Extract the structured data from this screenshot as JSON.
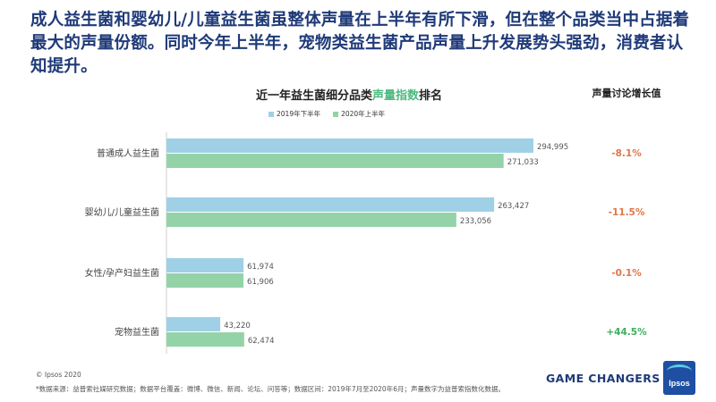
{
  "headline": "成人益生菌和婴幼儿/儿童益生菌虽整体声量在上半年有所下滑，但在整个品类当中占据着最大的声量份额。同时今年上半年，宠物类益生菌产品声量上升发展势头强劲，消费者认知提升。",
  "growth_header": "声量讨论增长值",
  "footer": {
    "copyright": "© Ipsos 2020",
    "source": "*数据来源：益普索社媒研究数据；数据平台覆盖：微博、微信、新闻、论坛、问答等；数据区间：2019年7月至2020年6月；声量数字为益普索指数化数据。",
    "brand": "GAME CHANGERS",
    "logo_text": "Ipsos"
  },
  "colors": {
    "series_2019": "#9fd0e6",
    "series_2020": "#94d3a8",
    "negative": "#e0764a",
    "positive": "#3fae5c",
    "headline": "#1f3a78",
    "highlight": "#4cba7e"
  },
  "chart_data": {
    "type": "bar",
    "orientation": "horizontal",
    "title_parts": [
      "近一年益生菌细分品类",
      "声量指数",
      "排名"
    ],
    "categories": [
      "普通成人益生菌",
      "婴幼儿/儿童益生菌",
      "女性/孕产妇益生菌",
      "宠物益生菌"
    ],
    "series": [
      {
        "name": "2019年下半年",
        "values": [
          294995,
          263427,
          61974,
          43220
        ]
      },
      {
        "name": "2020年上半年",
        "values": [
          271033,
          233056,
          61906,
          62474
        ]
      }
    ],
    "value_labels": [
      [
        "294,995",
        "263,427",
        "61,974",
        "43,220"
      ],
      [
        "271,033",
        "233,056",
        "61,906",
        "62,474"
      ]
    ],
    "growth": [
      "-8.1%",
      "-11.5%",
      "-0.1%",
      "+44.5%"
    ],
    "legend_position": "top",
    "grid": false
  }
}
